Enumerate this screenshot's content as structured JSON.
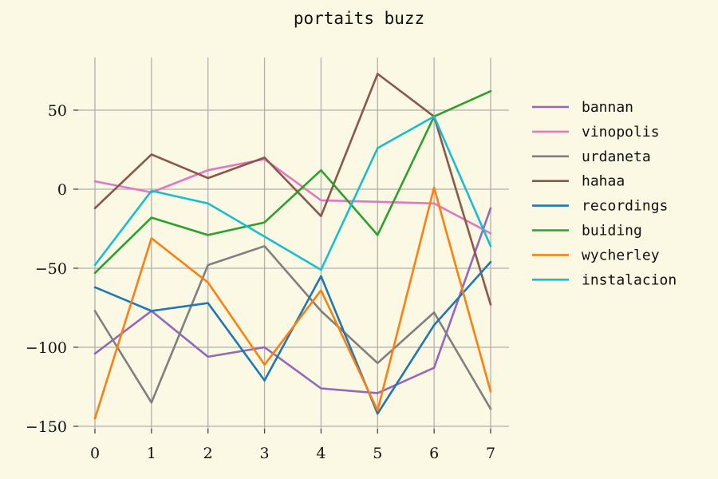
{
  "chart_data": {
    "type": "line",
    "title": "portaits buzz",
    "xlabel": "",
    "ylabel": "",
    "x": [
      0,
      1,
      2,
      3,
      4,
      5,
      6,
      7
    ],
    "xticks": [
      "0",
      "1",
      "2",
      "3",
      "4",
      "5",
      "6",
      "7"
    ],
    "yticks": [
      50,
      0,
      -50,
      -100,
      -150
    ],
    "ytick_labels": [
      "50",
      "0",
      "−50",
      "−100",
      "−150"
    ],
    "xlim": [
      0,
      7
    ],
    "ylim": [
      -150,
      73
    ],
    "grid": true,
    "legend_position": "right",
    "series": [
      {
        "name": "bannan",
        "color": "#9467bd",
        "values": [
          -104,
          -77,
          -106,
          -100,
          -126,
          -129,
          -113,
          -12
        ]
      },
      {
        "name": "vinopolis",
        "color": "#e377c2",
        "values": [
          5,
          -2,
          12,
          19,
          -7,
          -8,
          -9,
          -28
        ]
      },
      {
        "name": "urdaneta",
        "color": "#7f7f7f",
        "values": [
          -77,
          -135,
          -48,
          -36,
          -77,
          -110,
          -78,
          -139
        ]
      },
      {
        "name": "hahaa",
        "color": "#8c564b",
        "values": [
          -12,
          22,
          7,
          20,
          -17,
          73,
          46,
          -73
        ]
      },
      {
        "name": "recordings",
        "color": "#1f77b4",
        "values": [
          -62,
          -77,
          -72,
          -121,
          -55,
          -142,
          -86,
          -46
        ]
      },
      {
        "name": "buiding",
        "color": "#2ca02c",
        "values": [
          -53,
          -18,
          -29,
          -21,
          12,
          -29,
          46,
          62
        ]
      },
      {
        "name": "wycherley",
        "color": "#ff7f0e",
        "values": [
          -145,
          -31,
          -59,
          -111,
          -64,
          -140,
          1,
          -128
        ]
      },
      {
        "name": "instalacion",
        "color": "#17becf",
        "values": [
          -48,
          -1,
          -9,
          -30,
          -51,
          26,
          46,
          -36
        ]
      }
    ]
  }
}
